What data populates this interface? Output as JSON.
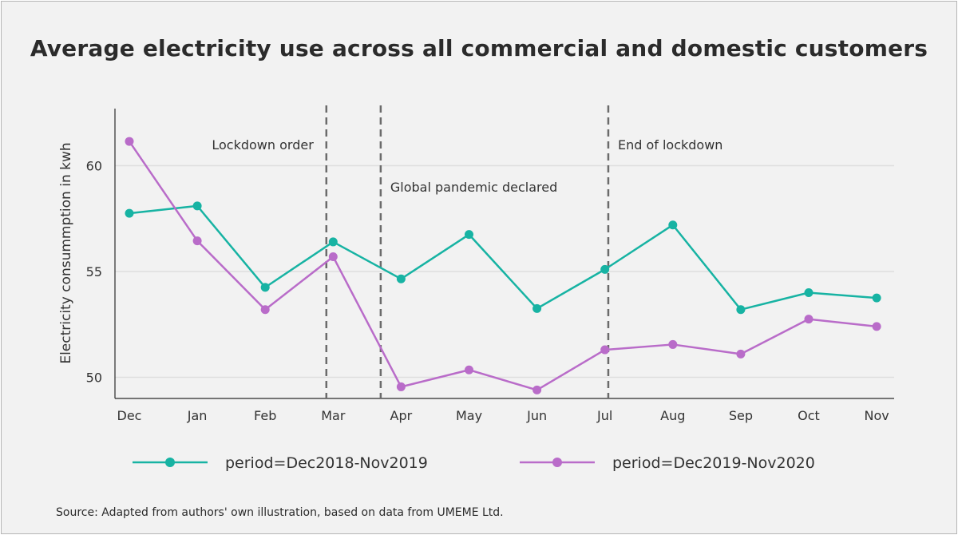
{
  "title": "Average electricity use across all commercial and domestic customers",
  "source": "Source: Adapted from authors' own illustration, based on data from UMEME Ltd.",
  "chart_data": {
    "type": "line",
    "categories": [
      "Dec",
      "Jan",
      "Feb",
      "Mar",
      "Apr",
      "May",
      "Jun",
      "Jul",
      "Aug",
      "Sep",
      "Oct",
      "Nov"
    ],
    "ylabel": "Electricity consummption in kwh",
    "xlabel": "",
    "yticks": [
      50,
      55,
      60
    ],
    "ylim": [
      49.0,
      62.7
    ],
    "grid": true,
    "legend_position": "bottom",
    "series": [
      {
        "name": "period=Dec2018-Nov2019",
        "color": "#17b3a3",
        "values": [
          57.75,
          58.1,
          54.25,
          56.4,
          54.65,
          56.75,
          53.25,
          55.1,
          57.2,
          53.2,
          54.0,
          53.75
        ]
      },
      {
        "name": "period=Dec2019-Nov2020",
        "color": "#b96cc9",
        "values": [
          61.15,
          56.45,
          53.2,
          55.7,
          49.55,
          50.35,
          49.4,
          51.3,
          51.55,
          51.1,
          52.75,
          52.4
        ]
      }
    ],
    "annotations": [
      {
        "label": "Lockdown order",
        "x": 2.9,
        "label_side": "left",
        "label_y": 61.0
      },
      {
        "label": "Global pandemic declared",
        "x": 3.7,
        "label_side": "right",
        "label_y": 59.0
      },
      {
        "label": "End of lockdown",
        "x": 7.05,
        "label_side": "right",
        "label_y": 61.0
      }
    ]
  }
}
